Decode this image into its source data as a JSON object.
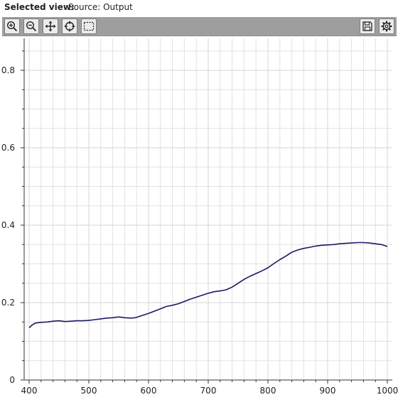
{
  "header": {
    "label": "Selected view:",
    "value": "Source: Output"
  },
  "toolbar": {
    "left": [
      {
        "name": "zoom-in-button",
        "icon": "zoom-in-icon"
      },
      {
        "name": "zoom-out-button",
        "icon": "zoom-out-icon"
      },
      {
        "name": "pan-button",
        "icon": "pan-icon"
      },
      {
        "name": "reset-view-button",
        "icon": "crosshair-icon"
      },
      {
        "name": "box-select-button",
        "icon": "box-select-icon"
      }
    ],
    "right": [
      {
        "name": "save-button",
        "icon": "save-icon"
      },
      {
        "name": "settings-button",
        "icon": "gear-icon"
      }
    ]
  },
  "colors": {
    "line": "#1a1a66",
    "grid": "#e2e2e2",
    "toolbar": "#9e9e9e"
  },
  "chart_data": {
    "type": "line",
    "title": "",
    "xlabel": "",
    "ylabel": "",
    "xlim": [
      400,
      1000
    ],
    "ylim": [
      0,
      0.9
    ],
    "x_ticks": [
      400,
      500,
      600,
      700,
      800,
      900,
      1000
    ],
    "y_ticks": [
      0,
      0.2,
      0.4,
      0.6,
      0.8
    ],
    "y_tick_labels": [
      "0",
      "0.2",
      "0.4",
      "0.6",
      "0.8"
    ],
    "grid": true,
    "legend": "none",
    "series": [
      {
        "x": [
          400,
          405,
          410,
          415,
          420,
          430,
          440,
          450,
          460,
          470,
          480,
          490,
          500,
          510,
          520,
          530,
          540,
          550,
          560,
          570,
          578,
          590,
          600,
          610,
          620,
          630,
          640,
          650,
          660,
          670,
          680,
          690,
          700,
          710,
          720,
          730,
          740,
          750,
          760,
          770,
          780,
          790,
          800,
          810,
          820,
          830,
          840,
          850,
          860,
          870,
          880,
          890,
          900,
          910,
          920,
          930,
          940,
          950,
          960,
          970,
          980,
          990,
          1000
        ],
        "values": [
          0.135,
          0.142,
          0.147,
          0.148,
          0.149,
          0.15,
          0.152,
          0.153,
          0.151,
          0.152,
          0.153,
          0.153,
          0.154,
          0.156,
          0.158,
          0.16,
          0.161,
          0.163,
          0.161,
          0.16,
          0.161,
          0.167,
          0.172,
          0.178,
          0.184,
          0.19,
          0.193,
          0.197,
          0.203,
          0.209,
          0.214,
          0.219,
          0.224,
          0.228,
          0.23,
          0.233,
          0.24,
          0.25,
          0.26,
          0.268,
          0.275,
          0.282,
          0.29,
          0.301,
          0.311,
          0.32,
          0.33,
          0.336,
          0.34,
          0.343,
          0.346,
          0.348,
          0.349,
          0.35,
          0.352,
          0.353,
          0.354,
          0.355,
          0.355,
          0.354,
          0.352,
          0.35,
          0.345
        ]
      }
    ]
  }
}
